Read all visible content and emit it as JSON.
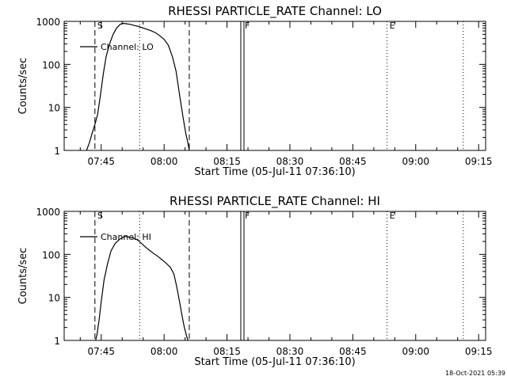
{
  "footer": {
    "timestamp": "18-Oct-2021 05:39"
  },
  "chart_data": [
    {
      "type": "line",
      "title": "RHESSI PARTICLE_RATE Channel: LO",
      "xlabel": "Start Time (05-Jul-11 07:36:10)",
      "ylabel": "Counts/sec",
      "y_scale": "log",
      "ylim": [
        1,
        1000
      ],
      "xlim": [
        "07:36:10",
        "09:16:40"
      ],
      "x_ticks": [
        "07:45",
        "08:00",
        "08:15",
        "08:30",
        "08:45",
        "09:00",
        "09:15"
      ],
      "y_ticks": [
        "1",
        "10",
        "100",
        "1000"
      ],
      "legend": {
        "position": "top-left",
        "entries": [
          "Channel: LO"
        ]
      },
      "markers": [
        {
          "label": "S",
          "time": "07:43:30",
          "style": "dashed"
        },
        {
          "label": "",
          "time": "07:54:10",
          "style": "dotted"
        },
        {
          "label": "",
          "time": "08:06:00",
          "style": "dashed"
        },
        {
          "label": "F",
          "time": "08:18:40",
          "style": "double-solid"
        },
        {
          "label": "E",
          "time": "08:53:10",
          "style": "dotted"
        },
        {
          "label": "",
          "time": "09:11:20",
          "style": "dotted"
        }
      ],
      "series": [
        {
          "name": "Channel: LO",
          "x": [
            "07:41:30",
            "07:42:10",
            "07:42:50",
            "07:43:30",
            "07:44:10",
            "07:44:50",
            "07:45:30",
            "07:46:10",
            "07:47:00",
            "07:47:50",
            "07:48:40",
            "07:49:30",
            "07:50:10",
            "07:51:00",
            "07:52:00",
            "07:53:00",
            "07:54:00",
            "07:55:00",
            "07:56:00",
            "07:57:00",
            "07:58:00",
            "07:59:00",
            "08:00:00",
            "08:01:00",
            "08:02:00",
            "08:02:50",
            "08:03:40",
            "08:04:30",
            "08:05:10",
            "08:05:40",
            "08:06:00"
          ],
          "y": [
            1,
            1.5,
            2.5,
            4,
            7,
            20,
            60,
            150,
            300,
            500,
            700,
            850,
            900,
            880,
            850,
            800,
            760,
            700,
            650,
            600,
            540,
            460,
            380,
            280,
            150,
            70,
            20,
            6,
            2.5,
            1.5,
            1
          ]
        }
      ]
    },
    {
      "type": "line",
      "title": "RHESSI PARTICLE_RATE Channel: HI",
      "xlabel": "Start Time (05-Jul-11 07:36:10)",
      "ylabel": "Counts/sec",
      "y_scale": "log",
      "ylim": [
        1,
        1000
      ],
      "xlim": [
        "07:36:10",
        "09:16:40"
      ],
      "x_ticks": [
        "07:45",
        "08:00",
        "08:15",
        "08:30",
        "08:45",
        "09:00",
        "09:15"
      ],
      "y_ticks": [
        "1",
        "10",
        "100",
        "1000"
      ],
      "legend": {
        "position": "top-left",
        "entries": [
          "Channel: HI"
        ]
      },
      "markers": [
        {
          "label": "S",
          "time": "07:43:30",
          "style": "dashed"
        },
        {
          "label": "",
          "time": "07:54:10",
          "style": "dotted"
        },
        {
          "label": "",
          "time": "08:06:00",
          "style": "dashed"
        },
        {
          "label": "F",
          "time": "08:18:40",
          "style": "double-solid"
        },
        {
          "label": "E",
          "time": "08:53:10",
          "style": "dotted"
        },
        {
          "label": "",
          "time": "09:11:20",
          "style": "dotted"
        }
      ],
      "series": [
        {
          "name": "Channel: HI",
          "x": [
            "07:43:40",
            "07:44:00",
            "07:44:30",
            "07:45:00",
            "07:45:40",
            "07:46:30",
            "07:47:20",
            "07:48:20",
            "07:49:30",
            "07:50:30",
            "07:51:30",
            "07:52:30",
            "07:53:30",
            "07:54:30",
            "07:55:30",
            "07:56:30",
            "07:57:30",
            "07:58:30",
            "07:59:30",
            "08:00:30",
            "08:01:30",
            "08:02:20",
            "08:03:00",
            "08:03:40",
            "08:04:20",
            "08:04:50",
            "08:05:20",
            "08:05:40"
          ],
          "y": [
            1,
            1.4,
            3,
            8,
            25,
            60,
            120,
            180,
            230,
            260,
            255,
            240,
            220,
            185,
            150,
            125,
            105,
            90,
            75,
            62,
            50,
            35,
            18,
            8,
            3.5,
            2,
            1.3,
            1
          ]
        }
      ]
    }
  ]
}
